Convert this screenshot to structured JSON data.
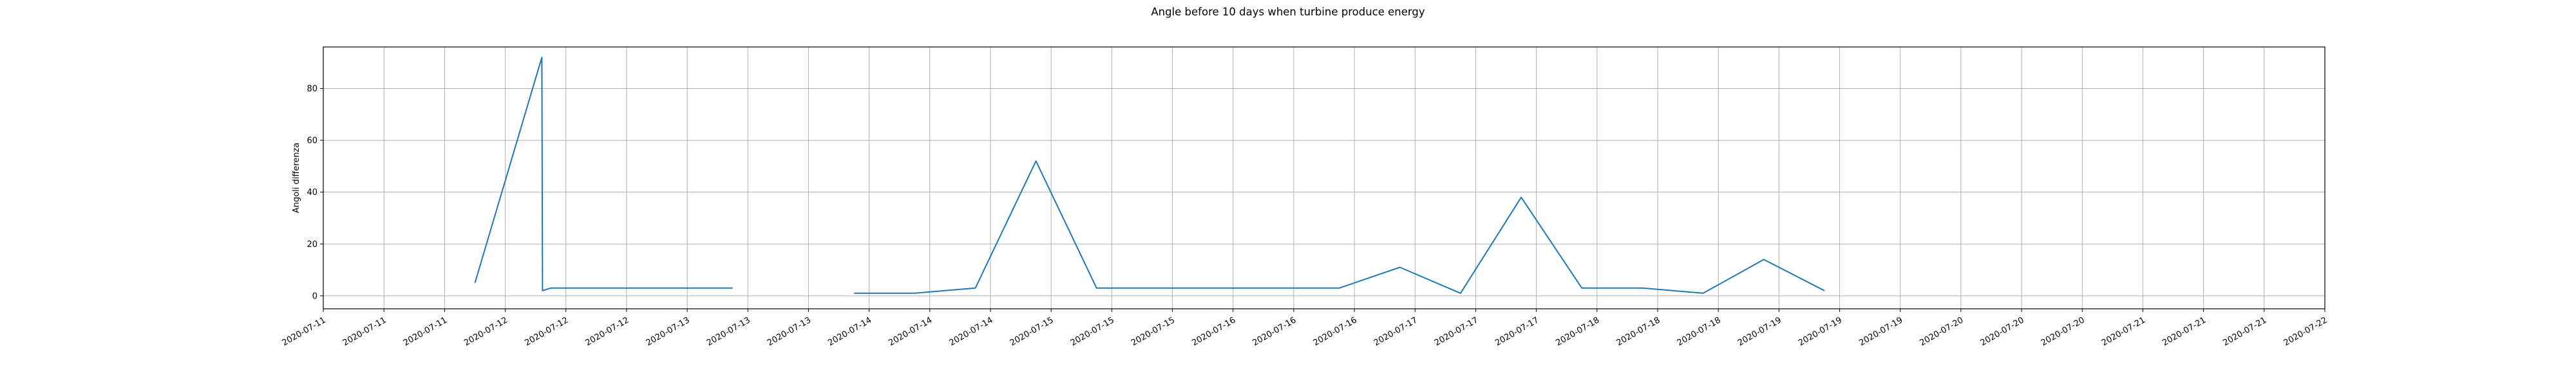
{
  "chart_data": {
    "type": "line",
    "title": "Angle before 10 days when turbine produce energy",
    "xlabel": "",
    "ylabel": "Angoli differenza",
    "xlim": [
      "2020-07-11 00:00",
      "2020-07-22 00:00"
    ],
    "ylim": [
      -5,
      96
    ],
    "grid": true,
    "line_color": "#1f77b4",
    "x_tick_labels": [
      "2020-07-11",
      "2020-07-11",
      "2020-07-11",
      "2020-07-12",
      "2020-07-12",
      "2020-07-12",
      "2020-07-13",
      "2020-07-13",
      "2020-07-13",
      "2020-07-14",
      "2020-07-14",
      "2020-07-14",
      "2020-07-15",
      "2020-07-15",
      "2020-07-15",
      "2020-07-16",
      "2020-07-16",
      "2020-07-16",
      "2020-07-17",
      "2020-07-17",
      "2020-07-17",
      "2020-07-18",
      "2020-07-18",
      "2020-07-18",
      "2020-07-19",
      "2020-07-19",
      "2020-07-19",
      "2020-07-20",
      "2020-07-20",
      "2020-07-20",
      "2020-07-21",
      "2020-07-21",
      "2020-07-21",
      "2020-07-22"
    ],
    "y_ticks": [
      0,
      20,
      40,
      60,
      80
    ],
    "series": [
      {
        "x": [
          "2020-07-11 16:20",
          "2020-07-11 17:30",
          "2020-07-11 18:10",
          "2020-07-11 19:00",
          "2020-07-11 20:00",
          "2020-07-12 04:50",
          "2020-07-12 04:55",
          "2020-07-12 06:00",
          "2020-07-12 13:00",
          "2020-07-12 14:00",
          "2020-07-12 15:00",
          "2020-07-12 22:00",
          "2020-07-13 06:00",
          "2020-07-13 14:00",
          "2020-07-13 22:00",
          "2020-07-14 06:00",
          "2020-07-14 14:00",
          "2020-07-14 22:00",
          "2020-07-15 06:00",
          "2020-07-15 14:00",
          "2020-07-15 22:00",
          "2020-07-16 06:00",
          "2020-07-16 14:00",
          "2020-07-16 22:00",
          "2020-07-17 06:00",
          "2020-07-17 14:00",
          "2020-07-17 22:00",
          "2020-07-18 06:00",
          "2020-07-18 14:00",
          "2020-07-18 22:00",
          "2020-07-19 06:00",
          "2020-07-19 14:00",
          "2020-07-19 22:00",
          "2020-07-20 06:00",
          "2020-07-20 14:00",
          "2020-07-20 22:00",
          "2020-07-21 06:00",
          "2020-07-21 14:00"
        ],
        "y": [
          null,
          null,
          null,
          null,
          5,
          92,
          2,
          3,
          3,
          3,
          3,
          3,
          3,
          null,
          1,
          1,
          3,
          52,
          3,
          3,
          3,
          3,
          3,
          11,
          1,
          38,
          3,
          3,
          1,
          14,
          2,
          null,
          null,
          null,
          null,
          null,
          null,
          null
        ]
      }
    ]
  }
}
